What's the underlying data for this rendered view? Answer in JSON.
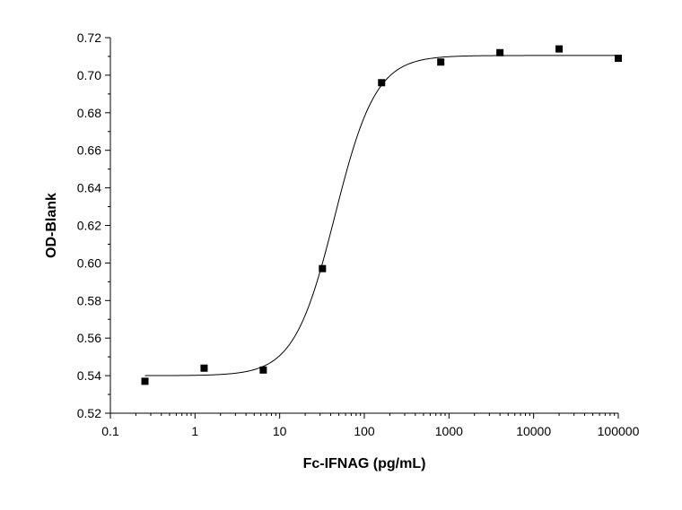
{
  "chart_data": {
    "type": "scatter",
    "title": "",
    "xlabel": "Fc-IFNAG (pg/mL)",
    "ylabel": "OD-Blank",
    "x_scale": "log",
    "xlim": [
      0.1,
      100000
    ],
    "ylim": [
      0.52,
      0.72
    ],
    "x_ticks": [
      {
        "value": 0.1,
        "label": "0.1"
      },
      {
        "value": 1,
        "label": "1"
      },
      {
        "value": 10,
        "label": "10"
      },
      {
        "value": 100,
        "label": "100"
      },
      {
        "value": 1000,
        "label": "1000"
      },
      {
        "value": 10000,
        "label": "10000"
      },
      {
        "value": 100000,
        "label": "100000"
      }
    ],
    "y_ticks": [
      {
        "value": 0.52,
        "label": "0.52"
      },
      {
        "value": 0.54,
        "label": "0.54"
      },
      {
        "value": 0.56,
        "label": "0.56"
      },
      {
        "value": 0.58,
        "label": "0.58"
      },
      {
        "value": 0.6,
        "label": "0.60"
      },
      {
        "value": 0.62,
        "label": "0.62"
      },
      {
        "value": 0.64,
        "label": "0.64"
      },
      {
        "value": 0.66,
        "label": "0.66"
      },
      {
        "value": 0.68,
        "label": "0.68"
      },
      {
        "value": 0.7,
        "label": "0.70"
      },
      {
        "value": 0.72,
        "label": "0.72"
      }
    ],
    "points": [
      {
        "x": 0.256,
        "y": 0.537
      },
      {
        "x": 1.28,
        "y": 0.544
      },
      {
        "x": 6.4,
        "y": 0.543
      },
      {
        "x": 32,
        "y": 0.597
      },
      {
        "x": 160,
        "y": 0.696
      },
      {
        "x": 800,
        "y": 0.707
      },
      {
        "x": 4000,
        "y": 0.712
      },
      {
        "x": 20000,
        "y": 0.714
      },
      {
        "x": 100000,
        "y": 0.709
      }
    ],
    "fit_curve": {
      "model": "4PL",
      "bottom": 0.54,
      "top": 0.7105,
      "ec50": 45,
      "hill": 1.8
    },
    "grid": false,
    "legend": "none",
    "colors": {
      "marker": "#000000",
      "curve": "#000000",
      "axis": "#000000"
    }
  }
}
